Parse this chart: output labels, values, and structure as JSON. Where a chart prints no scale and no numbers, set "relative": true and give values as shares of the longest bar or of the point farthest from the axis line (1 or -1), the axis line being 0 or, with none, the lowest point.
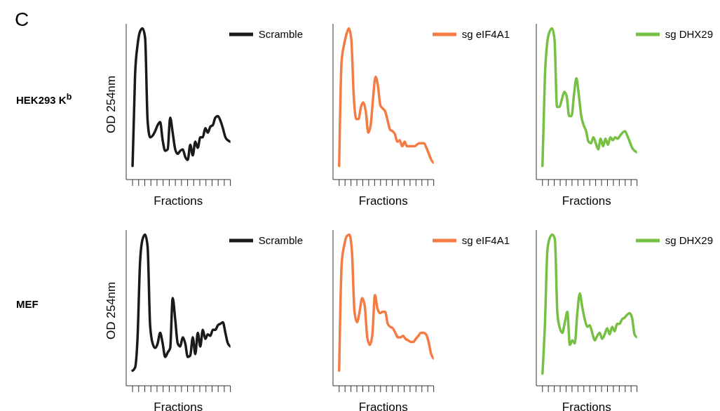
{
  "chart_data": [
    {
      "type": "line",
      "relative": true,
      "xlabel": "Fractions",
      "ylabel": "OD 254nm",
      "legend": "top right",
      "tick_labels": false,
      "annotations": [
        "C",
        "HEK293 K$^{b}$"
      ],
      "categories": [
        null,
        null,
        null,
        null,
        null,
        null,
        null,
        null,
        null,
        null,
        null,
        null,
        null,
        null,
        null,
        null,
        null,
        null,
        null,
        null,
        null,
        null,
        null,
        null,
        null,
        null,
        null,
        null,
        null,
        null,
        null,
        null,
        null,
        null,
        null,
        null,
        null,
        null,
        null,
        null
      ],
      "series": [
        {
          "name": "Scramble",
          "color": "#1a1a1a",
          "values": [
            0.09,
            0.69,
            0.89,
            0.98,
            1.0,
            0.94,
            0.39,
            0.28,
            0.29,
            0.32,
            0.36,
            0.38,
            0.26,
            0.19,
            0.2,
            0.41,
            0.31,
            0.2,
            0.17,
            0.19,
            0.2,
            0.15,
            0.13,
            0.23,
            0.16,
            0.25,
            0.21,
            0.28,
            0.28,
            0.34,
            0.31,
            0.35,
            0.36,
            0.41,
            0.42,
            0.39,
            0.34,
            0.28,
            0.26,
            0.25
          ]
        }
      ]
    },
    {
      "type": "line",
      "relative": true,
      "xlabel": "Fractions",
      "legend": "top right",
      "tick_labels": false,
      "categories": [
        null,
        null,
        null,
        null,
        null,
        null,
        null,
        null,
        null,
        null,
        null,
        null,
        null,
        null,
        null,
        null,
        null,
        null,
        null,
        null,
        null,
        null,
        null,
        null,
        null,
        null,
        null,
        null,
        null,
        null,
        null,
        null,
        null,
        null,
        null,
        null,
        null,
        null,
        null,
        null
      ],
      "series": [
        {
          "name": "sg eIF4A1",
          "color": "#f47c44",
          "values": [
            0.09,
            0.78,
            0.89,
            0.96,
            1.0,
            0.93,
            0.56,
            0.4,
            0.4,
            0.48,
            0.51,
            0.45,
            0.31,
            0.36,
            0.54,
            0.68,
            0.62,
            0.49,
            0.47,
            0.45,
            0.39,
            0.33,
            0.32,
            0.3,
            0.25,
            0.26,
            0.22,
            0.25,
            0.22,
            0.22,
            0.22,
            0.22,
            0.23,
            0.24,
            0.24,
            0.24,
            0.21,
            0.17,
            0.13,
            0.11
          ]
        }
      ]
    },
    {
      "type": "line",
      "relative": true,
      "xlabel": "Fractions",
      "legend": "top right",
      "tick_labels": false,
      "categories": [
        null,
        null,
        null,
        null,
        null,
        null,
        null,
        null,
        null,
        null,
        null,
        null,
        null,
        null,
        null,
        null,
        null,
        null,
        null,
        null,
        null,
        null,
        null,
        null,
        null,
        null,
        null,
        null,
        null,
        null,
        null,
        null,
        null,
        null,
        null,
        null,
        null,
        null,
        null,
        null
      ],
      "series": [
        {
          "name": "sg DHX29",
          "color": "#76c043",
          "values": [
            0.09,
            0.68,
            0.91,
            0.98,
            1.0,
            0.92,
            0.48,
            0.48,
            0.53,
            0.58,
            0.55,
            0.42,
            0.42,
            0.56,
            0.67,
            0.56,
            0.42,
            0.36,
            0.32,
            0.25,
            0.24,
            0.28,
            0.24,
            0.2,
            0.27,
            0.22,
            0.27,
            0.23,
            0.28,
            0.26,
            0.28,
            0.27,
            0.29,
            0.31,
            0.32,
            0.29,
            0.25,
            0.21,
            0.19,
            0.18
          ]
        }
      ]
    },
    {
      "type": "line",
      "relative": true,
      "xlabel": "Fractions",
      "ylabel": "OD 254nm",
      "legend": "top right",
      "tick_labels": false,
      "annotations": [
        "MEF"
      ],
      "categories": [
        null,
        null,
        null,
        null,
        null,
        null,
        null,
        null,
        null,
        null,
        null,
        null,
        null,
        null,
        null,
        null,
        null,
        null,
        null,
        null,
        null,
        null,
        null,
        null,
        null,
        null,
        null,
        null,
        null,
        null,
        null,
        null,
        null,
        null,
        null,
        null,
        null,
        null,
        null,
        null
      ],
      "series": [
        {
          "name": "Scramble",
          "color": "#1a1a1a",
          "values": [
            0.1,
            0.12,
            0.32,
            0.82,
            0.97,
            1.0,
            0.92,
            0.4,
            0.28,
            0.25,
            0.28,
            0.35,
            0.28,
            0.19,
            0.22,
            0.25,
            0.58,
            0.44,
            0.28,
            0.26,
            0.32,
            0.28,
            0.19,
            0.2,
            0.32,
            0.21,
            0.35,
            0.26,
            0.37,
            0.31,
            0.34,
            0.33,
            0.37,
            0.37,
            0.4,
            0.41,
            0.42,
            0.35,
            0.28,
            0.26
          ]
        }
      ]
    },
    {
      "type": "line",
      "relative": true,
      "xlabel": "Fractions",
      "legend": "top right",
      "tick_labels": false,
      "categories": [
        null,
        null,
        null,
        null,
        null,
        null,
        null,
        null,
        null,
        null,
        null,
        null,
        null,
        null,
        null,
        null,
        null,
        null,
        null,
        null,
        null,
        null,
        null,
        null,
        null,
        null,
        null,
        null,
        null,
        null,
        null,
        null,
        null,
        null,
        null,
        null,
        null,
        null
      ],
      "series": [
        {
          "name": "sg eIF4A1",
          "color": "#f47c44",
          "values": [
            0.1,
            0.81,
            0.93,
            0.99,
            1.0,
            0.89,
            0.49,
            0.42,
            0.49,
            0.58,
            0.53,
            0.32,
            0.27,
            0.34,
            0.6,
            0.51,
            0.48,
            0.49,
            0.49,
            0.41,
            0.39,
            0.38,
            0.35,
            0.32,
            0.32,
            0.33,
            0.31,
            0.3,
            0.29,
            0.29,
            0.31,
            0.33,
            0.35,
            0.35,
            0.34,
            0.29,
            0.21,
            0.18
          ]
        }
      ]
    },
    {
      "type": "line",
      "relative": true,
      "xlabel": "Fractions",
      "legend": "top right",
      "tick_labels": false,
      "categories": [
        null,
        null,
        null,
        null,
        null,
        null,
        null,
        null,
        null,
        null,
        null,
        null,
        null,
        null,
        null,
        null,
        null,
        null,
        null,
        null,
        null,
        null,
        null,
        null,
        null,
        null,
        null,
        null,
        null,
        null,
        null,
        null,
        null,
        null,
        null,
        null,
        null,
        null,
        null
      ],
      "series": [
        {
          "name": "sg DHX29",
          "color": "#76c043",
          "values": [
            0.08,
            0.41,
            0.9,
            0.98,
            1.0,
            0.97,
            0.48,
            0.38,
            0.35,
            0.42,
            0.49,
            0.27,
            0.3,
            0.28,
            0.48,
            0.61,
            0.52,
            0.44,
            0.39,
            0.4,
            0.35,
            0.3,
            0.33,
            0.35,
            0.31,
            0.34,
            0.38,
            0.34,
            0.39,
            0.36,
            0.41,
            0.41,
            0.44,
            0.45,
            0.47,
            0.48,
            0.45,
            0.34,
            0.32
          ]
        }
      ]
    }
  ]
}
